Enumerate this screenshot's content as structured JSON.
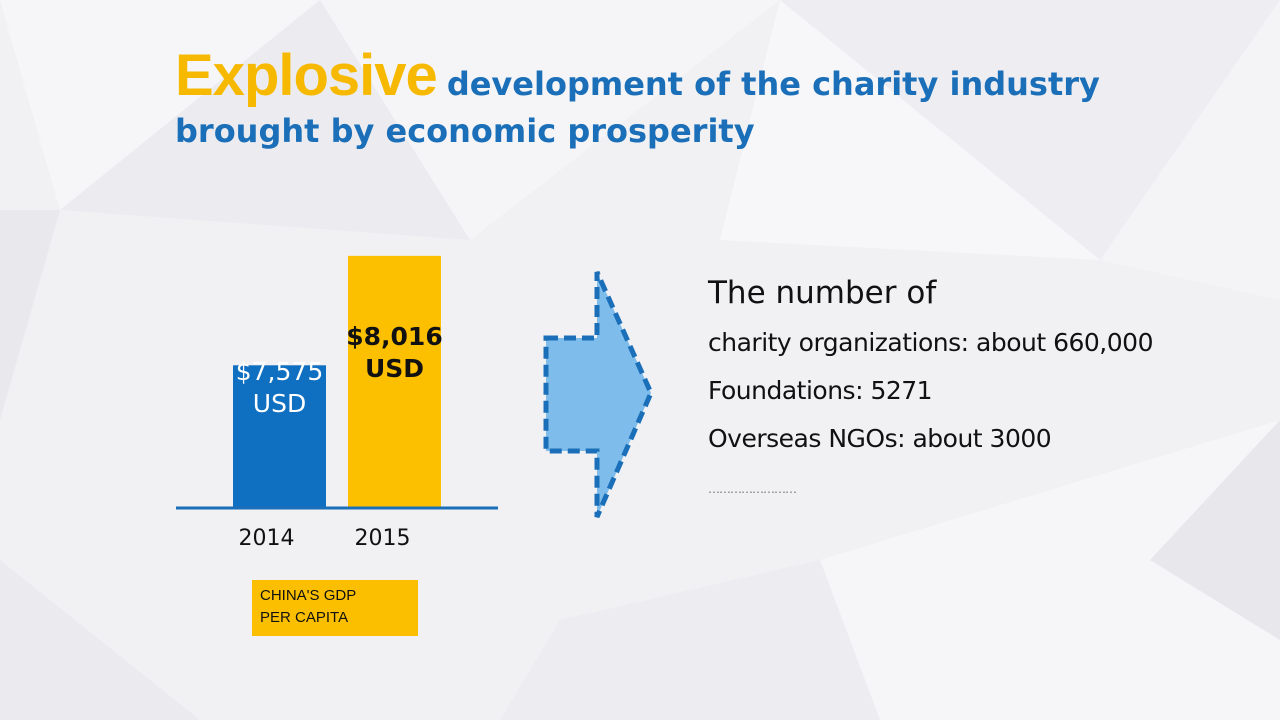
{
  "title": {
    "highlight": "Explosive",
    "rest": "development of the charity industry",
    "line2": "brought by economic prosperity"
  },
  "colors": {
    "highlight": "#f7b900",
    "title_blue": "#1a6fb8",
    "bar_2014": "#0f6fc1",
    "bar_2015": "#fdc000",
    "arrow_fill": "#7ebcec",
    "arrow_stroke": "#1a6fb8"
  },
  "chart_data": {
    "type": "bar",
    "categories": [
      "2014",
      "2015"
    ],
    "values": [
      7575,
      8016
    ],
    "value_labels": [
      [
        "$7,575",
        "USD"
      ],
      [
        "$8,016",
        "USD"
      ]
    ],
    "xlabel": "China's GDP per capita",
    "ylabel": "",
    "ylim": [
      7000,
      8100
    ]
  },
  "caption": {
    "line1": "China's GDP",
    "line2": "per capita"
  },
  "arrow": {
    "icon": "right-arrow-icon"
  },
  "info": {
    "heading": "The number of",
    "lines": [
      "charity organizations: about 660,000",
      "Foundations: 5271",
      "Overseas NGOs: about 3000"
    ],
    "ellipsis": "……………………"
  }
}
